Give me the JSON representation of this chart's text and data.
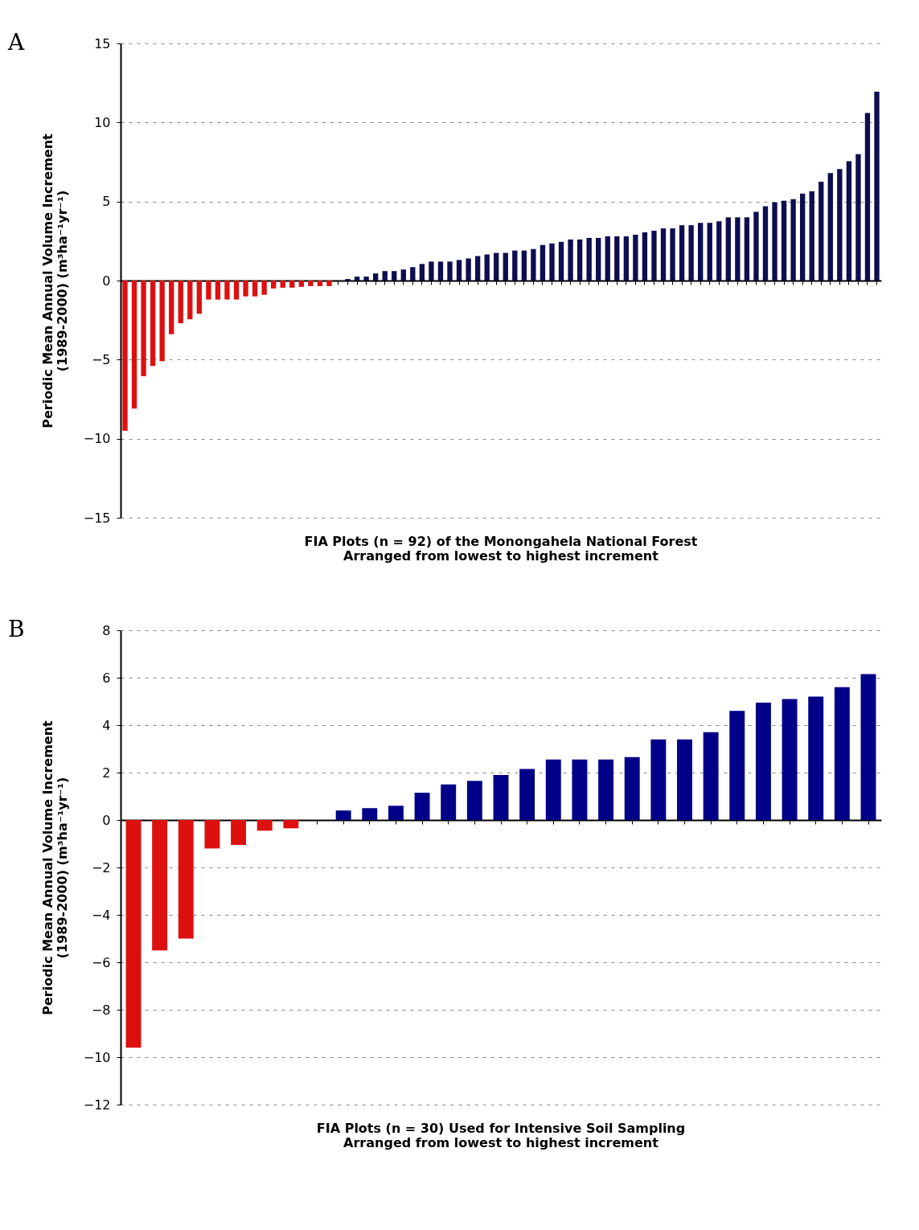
{
  "chart_data": [
    {
      "type": "bar",
      "annotations": [
        "A"
      ],
      "ylabel": "Periodic Mean Annual Volume Increment\n(1989-2000) (m³ha⁻¹yr⁻¹)",
      "xlabel": "FIA Plots (n = 92) of the Monongahela National Forest\nArranged from lowest to highest increment",
      "tick_labels": "y",
      "grid": "y",
      "ylim": [
        -15,
        15
      ],
      "yticks": [
        -15,
        -10,
        -5,
        0,
        5,
        10,
        15
      ],
      "categories": [
        null,
        null,
        null,
        null,
        null,
        null,
        null,
        null,
        null,
        null,
        null,
        null,
        null,
        null,
        null,
        null,
        null,
        null,
        null,
        null,
        null,
        null,
        null,
        null,
        null,
        null,
        null,
        null,
        null,
        null,
        null,
        null,
        null,
        null,
        null,
        null,
        null,
        null,
        null,
        null,
        null,
        null,
        null,
        null,
        null,
        null,
        null,
        null,
        null,
        null,
        null,
        null,
        null,
        null,
        null,
        null,
        null,
        null,
        null,
        null,
        null,
        null,
        null,
        null,
        null,
        null,
        null,
        null,
        null,
        null,
        null,
        null,
        null,
        null,
        null,
        null,
        null,
        null,
        null,
        null,
        null,
        null
      ],
      "values": [
        -9.5,
        -8.1,
        -6.05,
        -5.4,
        -5.1,
        -3.4,
        -2.7,
        -2.45,
        -2.1,
        -1.2,
        -1.2,
        -1.2,
        -1.2,
        -1.0,
        -1.0,
        -0.9,
        -0.5,
        -0.45,
        -0.45,
        -0.4,
        -0.35,
        -0.35,
        -0.35,
        0,
        0.1,
        0.25,
        0.25,
        0.45,
        0.6,
        0.6,
        0.7,
        0.85,
        1.05,
        1.2,
        1.2,
        1.2,
        1.3,
        1.4,
        1.55,
        1.65,
        1.75,
        1.75,
        1.9,
        1.9,
        2.0,
        2.25,
        2.35,
        2.45,
        2.6,
        2.6,
        2.7,
        2.7,
        2.8,
        2.8,
        2.8,
        2.9,
        3.05,
        3.15,
        3.3,
        3.3,
        3.5,
        3.5,
        3.65,
        3.65,
        3.75,
        4.0,
        4.0,
        4.0,
        4.35,
        4.7,
        4.95,
        5.05,
        5.15,
        5.5,
        5.65,
        6.25,
        6.8,
        7.05,
        7.55,
        8.0,
        10.6,
        11.95
      ],
      "colors": [
        "#dd1010",
        "#dd1010",
        "#dd1010",
        "#dd1010",
        "#dd1010",
        "#dd1010",
        "#dd1010",
        "#dd1010",
        "#dd1010",
        "#dd1010",
        "#dd1010",
        "#dd1010",
        "#dd1010",
        "#dd1010",
        "#dd1010",
        "#dd1010",
        "#dd1010",
        "#dd1010",
        "#dd1010",
        "#dd1010",
        "#dd1010",
        "#dd1010",
        "#dd1010",
        "#0d0d4f",
        "#0d0d4f",
        "#0d0d4f",
        "#0d0d4f",
        "#0d0d4f",
        "#0d0d4f",
        "#0d0d4f",
        "#0d0d4f",
        "#0d0d4f",
        "#0d0d4f",
        "#0d0d4f",
        "#0d0d4f",
        "#0d0d4f",
        "#0d0d4f",
        "#0d0d4f",
        "#0d0d4f",
        "#0d0d4f",
        "#0d0d4f",
        "#0d0d4f",
        "#0d0d4f",
        "#0d0d4f",
        "#0d0d4f",
        "#0d0d4f",
        "#0d0d4f",
        "#0d0d4f",
        "#0d0d4f",
        "#0d0d4f",
        "#0d0d4f",
        "#0d0d4f",
        "#0d0d4f",
        "#0d0d4f",
        "#0d0d4f",
        "#0d0d4f",
        "#0d0d4f",
        "#0d0d4f",
        "#0d0d4f",
        "#0d0d4f",
        "#0d0d4f",
        "#0d0d4f",
        "#0d0d4f",
        "#0d0d4f",
        "#0d0d4f",
        "#0d0d4f",
        "#0d0d4f",
        "#0d0d4f",
        "#0d0d4f",
        "#0d0d4f",
        "#0d0d4f",
        "#0d0d4f",
        "#0d0d4f",
        "#0d0d4f",
        "#0d0d4f",
        "#0d0d4f",
        "#0d0d4f",
        "#0d0d4f",
        "#0d0d4f",
        "#0d0d4f",
        "#0d0d4f",
        "#0d0d4f"
      ]
    },
    {
      "type": "bar",
      "annotations": [
        "B"
      ],
      "ylabel": "Periodic Mean Annual Volume Increment\n(1989-2000) (m³ha⁻¹yr⁻¹)",
      "xlabel": "FIA Plots (n = 30) Used for Intensive Soil Sampling\nArranged from lowest to highest increment",
      "tick_labels": "y",
      "grid": "y",
      "ylim": [
        -12,
        8
      ],
      "yticks": [
        -12,
        -10,
        -8,
        -6,
        -4,
        -2,
        0,
        2,
        4,
        6,
        8
      ],
      "categories": [
        null,
        null,
        null,
        null,
        null,
        null,
        null,
        null,
        null,
        null,
        null,
        null,
        null,
        null,
        null,
        null,
        null,
        null,
        null,
        null,
        null,
        null,
        null,
        null,
        null,
        null,
        null,
        null,
        null
      ],
      "values": [
        -9.6,
        -5.5,
        -5.0,
        -1.2,
        -1.05,
        -0.45,
        -0.35,
        0,
        0.4,
        0.5,
        0.6,
        1.15,
        1.5,
        1.65,
        1.9,
        2.15,
        2.55,
        2.55,
        2.55,
        2.65,
        3.4,
        3.4,
        3.7,
        4.6,
        4.95,
        5.1,
        5.2,
        5.6,
        6.15
      ],
      "colors": [
        "#dd1010",
        "#dd1010",
        "#dd1010",
        "#dd1010",
        "#dd1010",
        "#dd1010",
        "#dd1010",
        "#000088",
        "#000088",
        "#000088",
        "#000088",
        "#000088",
        "#000088",
        "#000088",
        "#000088",
        "#000088",
        "#000088",
        "#000088",
        "#000088",
        "#000088",
        "#000088",
        "#000088",
        "#000088",
        "#000088",
        "#000088",
        "#000088",
        "#000088",
        "#000088",
        "#000088"
      ]
    }
  ]
}
